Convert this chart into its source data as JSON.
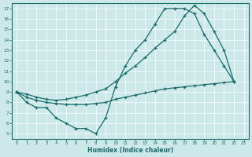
{
  "xlabel": "Humidex (Indice chaleur)",
  "bg_color": "#cce8e8",
  "line_color": "#1a6b6b",
  "xlim": [
    -0.5,
    23.5
  ],
  "ylim": [
    4.5,
    17.5
  ],
  "xticks": [
    0,
    1,
    2,
    3,
    4,
    5,
    6,
    7,
    8,
    9,
    10,
    11,
    12,
    13,
    14,
    15,
    16,
    17,
    18,
    19,
    20,
    21,
    22,
    23
  ],
  "yticks": [
    5,
    6,
    7,
    8,
    9,
    10,
    11,
    12,
    13,
    14,
    15,
    16,
    17
  ],
  "line1_x": [
    0,
    1,
    2,
    3,
    4,
    5,
    6,
    7,
    8,
    9,
    10,
    11,
    12,
    13,
    14,
    15,
    16,
    17,
    18,
    19,
    20,
    21,
    22
  ],
  "line1_y": [
    9.0,
    8.0,
    7.5,
    7.5,
    6.5,
    6.0,
    5.5,
    5.5,
    5.0,
    6.5,
    9.5,
    11.5,
    13.0,
    14.0,
    15.5,
    17.0,
    17.0,
    17.0,
    16.5,
    14.5,
    13.0,
    11.5,
    10.0
  ],
  "line2_x": [
    0,
    1,
    2,
    3,
    4,
    5,
    6,
    7,
    8,
    9,
    10,
    11,
    12,
    13,
    14,
    15,
    16,
    17,
    18,
    19,
    20,
    21,
    22
  ],
  "line2_y": [
    9.0,
    8.8,
    8.5,
    8.3,
    8.2,
    8.3,
    8.5,
    8.7,
    9.0,
    9.3,
    10.0,
    10.8,
    11.5,
    12.3,
    13.2,
    14.0,
    14.8,
    16.3,
    17.3,
    16.5,
    14.8,
    13.0,
    10.0
  ],
  "line3_x": [
    0,
    1,
    2,
    3,
    4,
    5,
    6,
    7,
    8,
    9,
    10,
    11,
    12,
    13,
    14,
    15,
    16,
    17,
    18,
    19,
    20,
    21,
    22
  ],
  "line3_y": [
    9.0,
    8.5,
    8.2,
    8.0,
    7.9,
    7.8,
    7.8,
    7.8,
    7.9,
    8.0,
    8.3,
    8.5,
    8.7,
    8.9,
    9.1,
    9.3,
    9.4,
    9.5,
    9.6,
    9.7,
    9.8,
    9.9,
    10.0
  ]
}
